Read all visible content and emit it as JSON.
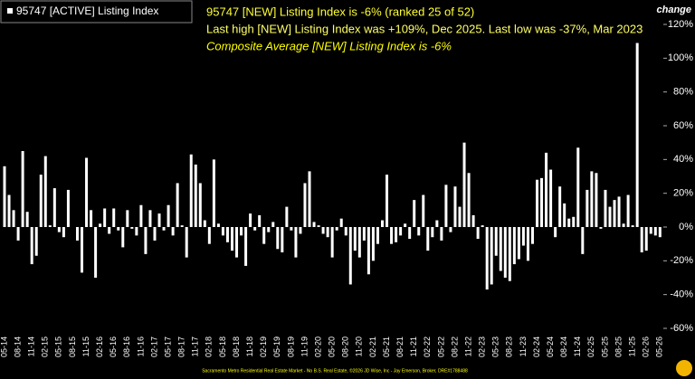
{
  "chart_data": {
    "type": "bar",
    "legend": "95747 [ACTIVE] Listing Index",
    "axis_title": "change",
    "annotations": [
      "95747 [NEW] Listing Index is -6% (ranked 25 of 52)",
      "Last high [NEW] Listing Index was +109%, Dec 2025. Last low was -37%, Mar 2023",
      "Composite Average [NEW] Listing Index is -6%"
    ],
    "source": "Sacramento Metro Residential Real Estate Market - No B.S. Real Estate, ©2026 JD Wise, Inc - Jay Emerson, Broker, DRE#1788488",
    "categories": [
      "05-14",
      null,
      null,
      "08-14",
      null,
      null,
      "11-14",
      null,
      null,
      "02-15",
      null,
      null,
      "05-15",
      null,
      null,
      "08-15",
      null,
      null,
      "11-15",
      null,
      null,
      "02-16",
      null,
      null,
      "05-16",
      null,
      null,
      "08-16",
      null,
      null,
      "11-16",
      null,
      null,
      "02-17",
      null,
      null,
      "05-17",
      null,
      null,
      "08-17",
      null,
      null,
      "11-17",
      null,
      null,
      "02-18",
      null,
      null,
      "05-18",
      null,
      null,
      "08-18",
      null,
      null,
      "11-18",
      null,
      null,
      "02-19",
      null,
      null,
      "05-19",
      null,
      null,
      "08-19",
      null,
      null,
      "11-19",
      null,
      null,
      "02-20",
      null,
      null,
      "05-20",
      null,
      null,
      "08-20",
      null,
      null,
      "11-20",
      null,
      null,
      "02-21",
      null,
      null,
      "05-21",
      null,
      null,
      "08-21",
      null,
      null,
      "11-21",
      null,
      null,
      "02-22",
      null,
      null,
      "05-22",
      null,
      null,
      "08-22",
      null,
      null,
      "11-22",
      null,
      null,
      "02-23",
      null,
      null,
      "05-23",
      null,
      null,
      "08-23",
      null,
      null,
      "11-23",
      null,
      null,
      "02-24",
      null,
      null,
      "05-24",
      null,
      null,
      "08-24",
      null,
      null,
      "11-24",
      null,
      null,
      "02-25",
      null,
      null,
      "05-25",
      null,
      null,
      "08-25",
      null,
      null,
      "11-25",
      null,
      null,
      "02-26",
      null,
      null,
      "05-26"
    ],
    "series": [
      {
        "name": "95747 [ACTIVE] Listing Index",
        "color": "#ffffff",
        "values": [
          36,
          19,
          10,
          -8,
          45,
          9,
          -22,
          -17,
          31,
          42,
          1,
          23,
          -3,
          -6,
          22,
          0,
          -8,
          -27,
          41,
          10,
          -30,
          2,
          11,
          -4,
          11,
          -2,
          -12,
          10,
          -1,
          -5,
          13,
          -16,
          10,
          -8,
          8,
          -2,
          13,
          -5,
          26,
          1,
          -18,
          43,
          37,
          26,
          4,
          -10,
          40,
          2,
          -5,
          -9,
          -14,
          -18,
          -5,
          -23,
          8,
          -2,
          7,
          -10,
          -3,
          3,
          -13,
          -15,
          12,
          -2,
          -18,
          -4,
          26,
          33,
          3,
          1,
          -4,
          -6,
          -18,
          -2,
          5,
          -5,
          -34,
          -14,
          -18,
          -8,
          -28,
          -20,
          -10,
          4,
          31,
          -10,
          -9,
          -5,
          2,
          -7,
          16,
          -5,
          19,
          -14,
          -6,
          4,
          -8,
          25,
          -3,
          24,
          12,
          50,
          32,
          7,
          -7,
          1,
          -37,
          -34,
          -17,
          -26,
          -30,
          -32,
          -22,
          -19,
          -11,
          -20,
          -10,
          28,
          29,
          44,
          34,
          -6,
          24,
          14,
          5,
          6,
          47,
          -16,
          22,
          33,
          32,
          -1,
          22,
          12,
          16,
          18,
          2,
          19,
          1,
          109,
          -15,
          -14,
          -4,
          -5,
          -6
        ]
      }
    ],
    "ylim": [
      -60,
      120
    ],
    "yticks": [
      {
        "value": -60,
        "label": "-60%"
      },
      {
        "value": -40,
        "label": "-40%"
      },
      {
        "value": -20,
        "label": "-20%"
      },
      {
        "value": 0,
        "label": "0%"
      },
      {
        "value": 20,
        "label": "20%"
      },
      {
        "value": 40,
        "label": "40%"
      },
      {
        "value": 60,
        "label": "60%"
      },
      {
        "value": 80,
        "label": "80%"
      },
      {
        "value": 100,
        "label": "100%"
      },
      {
        "value": 120,
        "label": "120%"
      }
    ]
  }
}
